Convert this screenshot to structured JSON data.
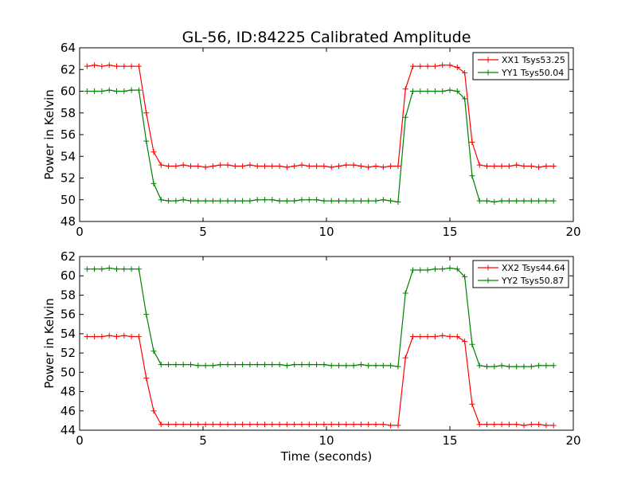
{
  "chart_data": [
    {
      "type": "line",
      "title": "GL-56, ID:84225 Calibrated Amplitude",
      "xlabel": "",
      "ylabel": "Power in Kelvin",
      "xlim": [
        0,
        20
      ],
      "ylim": [
        48,
        64
      ],
      "xticks": [
        "0",
        "5",
        "10",
        "15",
        "20"
      ],
      "yticks": [
        "48",
        "50",
        "52",
        "54",
        "56",
        "58",
        "60",
        "62",
        "64"
      ],
      "legend_position": "top-right",
      "grid": false,
      "x": [
        0.3,
        0.6,
        0.9,
        1.2,
        1.5,
        1.8,
        2.1,
        2.4,
        2.7,
        3.0,
        3.3,
        3.6,
        3.9,
        4.2,
        4.5,
        4.8,
        5.1,
        5.4,
        5.7,
        6.0,
        6.3,
        6.6,
        6.9,
        7.2,
        7.5,
        7.8,
        8.1,
        8.4,
        8.7,
        9.0,
        9.3,
        9.6,
        9.9,
        10.2,
        10.5,
        10.8,
        11.1,
        11.4,
        11.7,
        12.0,
        12.3,
        12.6,
        12.9,
        13.2,
        13.5,
        13.8,
        14.1,
        14.4,
        14.7,
        15.0,
        15.3,
        15.6,
        15.9,
        16.2,
        16.5,
        16.8,
        17.1,
        17.4,
        17.7,
        18.0,
        18.3,
        18.6,
        18.9,
        19.2
      ],
      "series": [
        {
          "name": "XX1 Tsys53.25",
          "color": "#ff0000",
          "values": [
            62.3,
            62.4,
            62.3,
            62.4,
            62.3,
            62.3,
            62.3,
            62.3,
            58.0,
            54.4,
            53.2,
            53.1,
            53.1,
            53.2,
            53.1,
            53.1,
            53.0,
            53.1,
            53.2,
            53.2,
            53.1,
            53.1,
            53.2,
            53.1,
            53.1,
            53.1,
            53.1,
            53.0,
            53.1,
            53.2,
            53.1,
            53.1,
            53.1,
            53.0,
            53.1,
            53.2,
            53.2,
            53.1,
            53.0,
            53.1,
            53.0,
            53.1,
            53.1,
            60.2,
            62.3,
            62.3,
            62.3,
            62.3,
            62.4,
            62.4,
            62.2,
            61.7,
            55.3,
            53.2,
            53.1,
            53.1,
            53.1,
            53.1,
            53.2,
            53.1,
            53.1,
            53.0,
            53.1,
            53.1
          ]
        },
        {
          "name": "YY1 Tsys50.04",
          "color": "#008000",
          "values": [
            60.0,
            60.0,
            60.0,
            60.1,
            60.0,
            60.0,
            60.1,
            60.1,
            55.4,
            51.5,
            50.0,
            49.9,
            49.9,
            50.0,
            49.9,
            49.9,
            49.9,
            49.9,
            49.9,
            49.9,
            49.9,
            49.9,
            49.9,
            50.0,
            50.0,
            50.0,
            49.9,
            49.9,
            49.9,
            50.0,
            50.0,
            50.0,
            49.9,
            49.9,
            49.9,
            49.9,
            49.9,
            49.9,
            49.9,
            49.9,
            50.0,
            49.9,
            49.8,
            57.6,
            60.0,
            60.0,
            60.0,
            60.0,
            60.0,
            60.1,
            60.0,
            59.3,
            52.2,
            49.9,
            49.9,
            49.8,
            49.9,
            49.9,
            49.9,
            49.9,
            49.9,
            49.9,
            49.9,
            49.9
          ]
        }
      ]
    },
    {
      "type": "line",
      "title": "",
      "xlabel": "Time (seconds)",
      "ylabel": "Power in Kelvin",
      "xlim": [
        0,
        20
      ],
      "ylim": [
        44,
        62
      ],
      "xticks": [
        "0",
        "5",
        "10",
        "15",
        "20"
      ],
      "yticks": [
        "44",
        "46",
        "48",
        "50",
        "52",
        "54",
        "56",
        "58",
        "60",
        "62"
      ],
      "legend_position": "top-right",
      "grid": false,
      "x": [
        0.3,
        0.6,
        0.9,
        1.2,
        1.5,
        1.8,
        2.1,
        2.4,
        2.7,
        3.0,
        3.3,
        3.6,
        3.9,
        4.2,
        4.5,
        4.8,
        5.1,
        5.4,
        5.7,
        6.0,
        6.3,
        6.6,
        6.9,
        7.2,
        7.5,
        7.8,
        8.1,
        8.4,
        8.7,
        9.0,
        9.3,
        9.6,
        9.9,
        10.2,
        10.5,
        10.8,
        11.1,
        11.4,
        11.7,
        12.0,
        12.3,
        12.6,
        12.9,
        13.2,
        13.5,
        13.8,
        14.1,
        14.4,
        14.7,
        15.0,
        15.3,
        15.6,
        15.9,
        16.2,
        16.5,
        16.8,
        17.1,
        17.4,
        17.7,
        18.0,
        18.3,
        18.6,
        18.9,
        19.2
      ],
      "series": [
        {
          "name": "XX2 Tsys44.64",
          "color": "#ff0000",
          "values": [
            53.7,
            53.7,
            53.7,
            53.8,
            53.7,
            53.8,
            53.7,
            53.7,
            49.4,
            46.0,
            44.6,
            44.6,
            44.6,
            44.6,
            44.6,
            44.6,
            44.6,
            44.6,
            44.6,
            44.6,
            44.6,
            44.6,
            44.6,
            44.6,
            44.6,
            44.6,
            44.6,
            44.6,
            44.6,
            44.6,
            44.6,
            44.6,
            44.6,
            44.6,
            44.6,
            44.6,
            44.6,
            44.6,
            44.6,
            44.6,
            44.6,
            44.5,
            44.5,
            51.5,
            53.7,
            53.7,
            53.7,
            53.7,
            53.8,
            53.7,
            53.7,
            53.2,
            46.7,
            44.6,
            44.6,
            44.6,
            44.6,
            44.6,
            44.6,
            44.5,
            44.6,
            44.6,
            44.5,
            44.5
          ]
        },
        {
          "name": "YY2 Tsys50.87",
          "color": "#008000",
          "values": [
            60.7,
            60.7,
            60.7,
            60.8,
            60.7,
            60.7,
            60.7,
            60.7,
            56.0,
            52.2,
            50.8,
            50.8,
            50.8,
            50.8,
            50.8,
            50.7,
            50.7,
            50.7,
            50.8,
            50.8,
            50.8,
            50.8,
            50.8,
            50.8,
            50.8,
            50.8,
            50.8,
            50.7,
            50.8,
            50.8,
            50.8,
            50.8,
            50.8,
            50.7,
            50.7,
            50.7,
            50.7,
            50.8,
            50.7,
            50.7,
            50.7,
            50.7,
            50.6,
            58.2,
            60.6,
            60.6,
            60.6,
            60.7,
            60.7,
            60.8,
            60.7,
            59.9,
            52.9,
            50.7,
            50.6,
            50.6,
            50.7,
            50.6,
            50.6,
            50.6,
            50.6,
            50.7,
            50.7,
            50.7
          ]
        }
      ]
    }
  ]
}
